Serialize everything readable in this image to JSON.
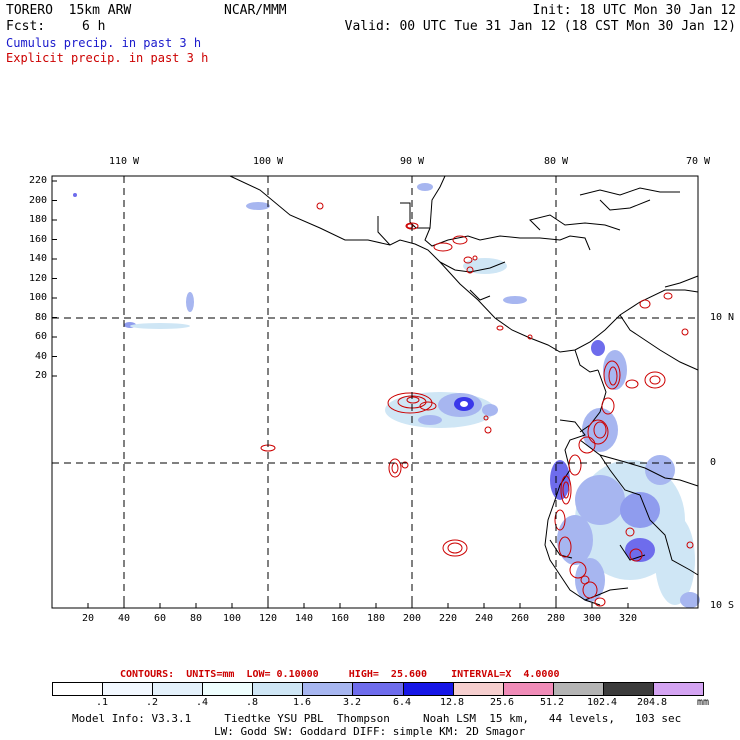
{
  "header": {
    "model": "TORERO  15km ARW",
    "center": "NCAR/MMM",
    "init": "Init: 18 UTC Mon 30 Jan 12",
    "fcst_label": "Fcst:",
    "fcst_value": "6 h",
    "valid": "Valid: 00 UTC Tue 31 Jan 12 (18 CST Mon 30 Jan 12)"
  },
  "legend": {
    "cumulus": "Cumulus precip. in past 3 h",
    "explicit": "Explicit precip. in past 3 h",
    "cumulus_color": "#1a1acc",
    "explicit_color": "#cc0000"
  },
  "map": {
    "top_lon_labels": [
      "110 W",
      "100 W",
      "90 W",
      "80 W",
      "70 W"
    ],
    "right_lat_labels": [
      "10 N",
      "0",
      "10 S"
    ],
    "y_ticks": [
      "220",
      "200",
      "180",
      "160",
      "140",
      "120",
      "100",
      "80",
      "60",
      "40",
      "20"
    ],
    "x_ticks": [
      "20",
      "40",
      "60",
      "80",
      "100",
      "120",
      "140",
      "160",
      "180",
      "200",
      "220",
      "240",
      "260",
      "280",
      "300",
      "320"
    ]
  },
  "contours_line": "CONTOURS:  UNITS=mm  LOW= 0.10000     HIGH=  25.600    INTERVAL=X  4.0000",
  "colorbar": {
    "labels": [
      ".1",
      ".2",
      ".4",
      ".8",
      "1.6",
      "3.2",
      "6.4",
      "12.8",
      "25.6",
      "51.2",
      "102.4",
      "204.8"
    ],
    "unit": "mm",
    "colors": [
      "#ffffff",
      "#f2f8ff",
      "#e4f1fb",
      "#eefefe",
      "#cfe6f5",
      "#a7b6f0",
      "#6e6cec",
      "#1616e6",
      "#f6cfcf",
      "#f08cb8",
      "#b4b4b4",
      "#3c3c3c",
      "#d4a4f2"
    ]
  },
  "model_info": {
    "line1": "Model Info: V3.3.1     Tiedtke YSU PBL  Thompson     Noah LSM  15 km,   44 levels,   103 sec",
    "line2": "LW: Godd SW: Goddard DIFF: simple KM: 2D Smagor"
  }
}
